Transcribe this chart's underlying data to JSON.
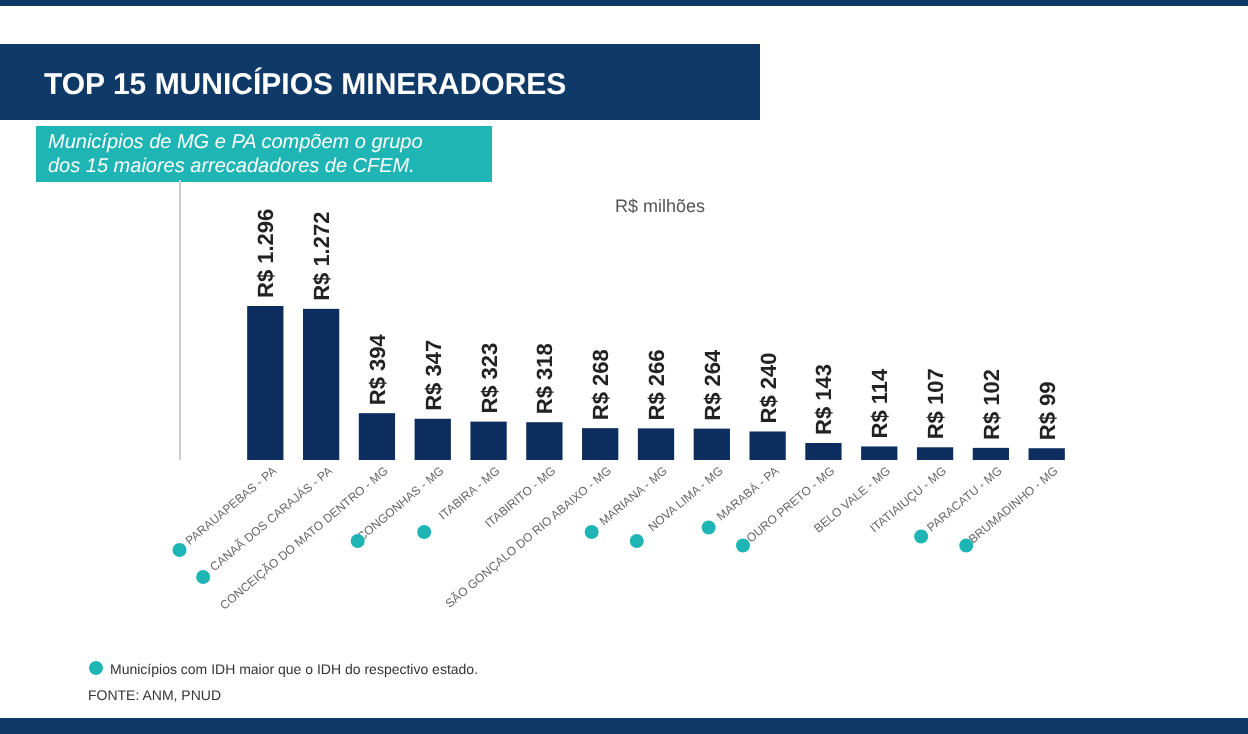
{
  "chart_data": {
    "type": "bar",
    "title": "TOP 15 MUNICÍPIOS MINERADORES",
    "subtitle": "Municípios de MG e PA compõem o grupo dos 15 maiores arrecadadores de CFEM.",
    "ylabel": "R$ milhões",
    "categories": [
      "PARAUAPEBAS - PA",
      "CANAÃ DOS CARAJÁS - PA",
      "CONCEIÇÃO DO MATO DENTRO - MG",
      "CONGONHAS - MG",
      "ITABIRA - MG",
      "ITABIRITO - MG",
      "SÃO GONÇALO DO RIO ABAIXO - MG",
      "MARIANA - MG",
      "NOVA LIMA - MG",
      "MARABÁ - PA",
      "OURO PRETO - MG",
      "BELO VALE - MG",
      "ITATIAIUÇU - MG",
      "PARACATU - MG",
      "BRUMADINHO - MG"
    ],
    "values": [
      1296,
      1272,
      394,
      347,
      323,
      318,
      268,
      266,
      264,
      240,
      143,
      114,
      107,
      102,
      99
    ],
    "value_labels": [
      "R$ 1.296",
      "R$ 1.272",
      "R$ 394",
      "R$ 347",
      "R$ 323",
      "R$ 318",
      "R$ 268",
      "R$ 266",
      "R$ 264",
      "R$ 240",
      "R$ 143",
      "R$ 114",
      "R$ 107",
      "R$ 102",
      "R$ 99"
    ],
    "color": "#0d2d5e",
    "annotations": [
      "Municípios com IDH maior que o IDH do respectivo estado.",
      "FONTE: ANM, PNUD"
    ]
  }
}
